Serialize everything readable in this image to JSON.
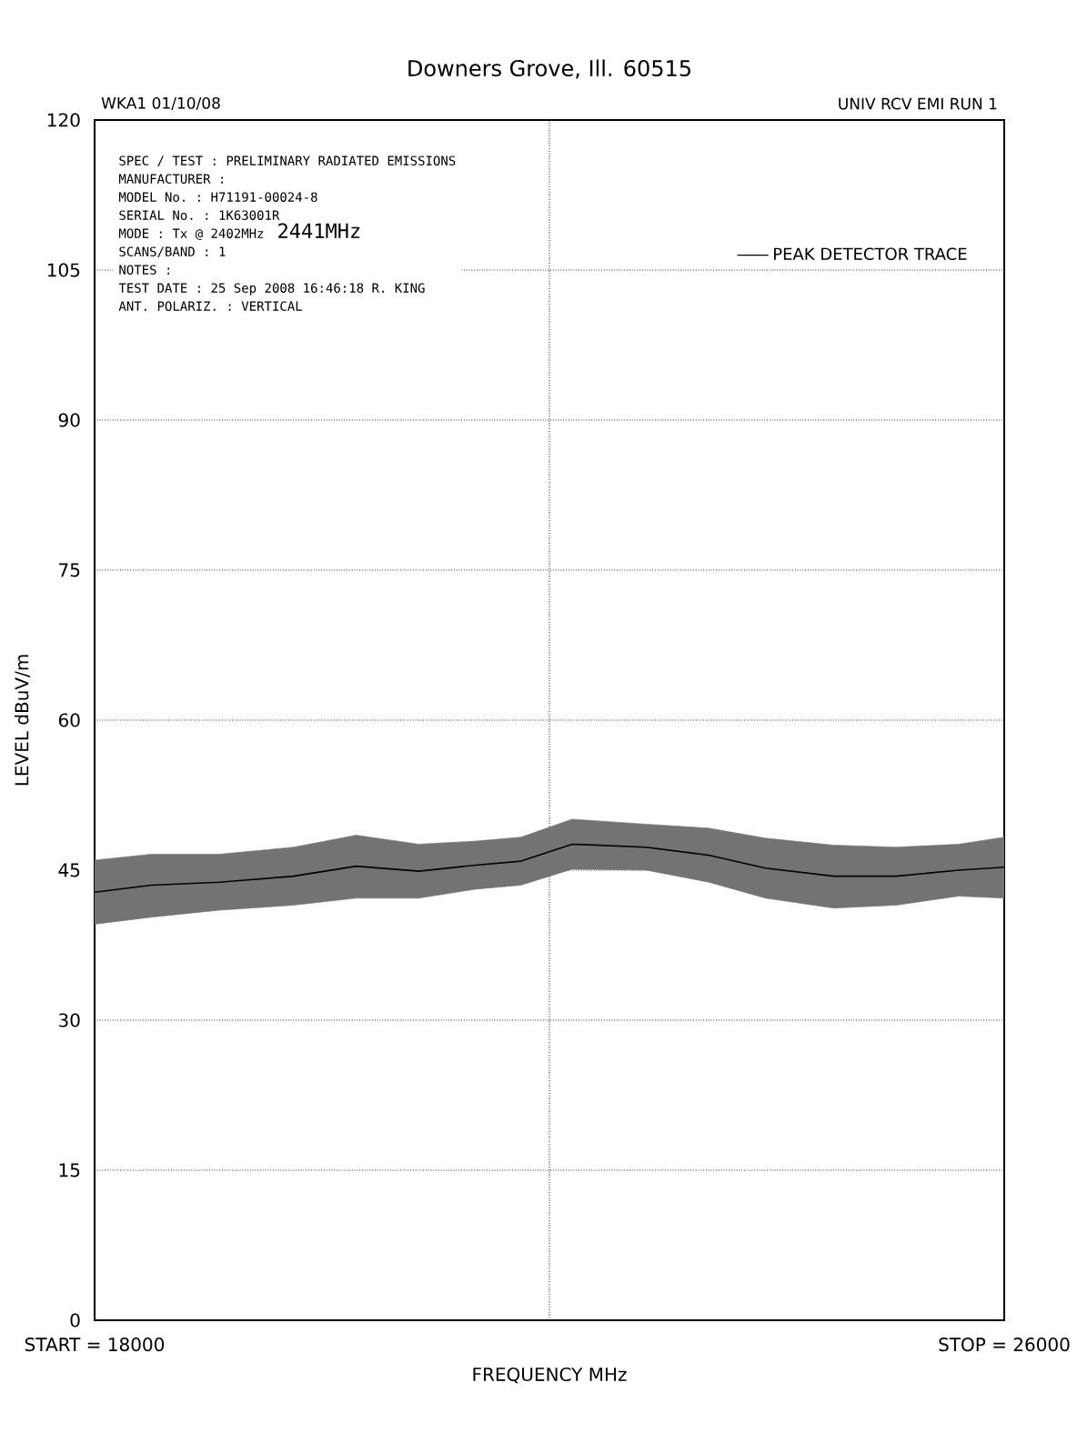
{
  "chart_data": {
    "type": "line",
    "subtitle": "Downers Grove, Ill. 60515",
    "xlabel": "FREQUENCY  MHz",
    "ylabel": "LEVEL dBuV/m",
    "x": [
      18000,
      18500,
      19100,
      19750,
      20300,
      20850,
      21350,
      21750,
      22200,
      22850,
      23400,
      23900,
      24500,
      25050,
      25600,
      26000
    ],
    "series": [
      {
        "name": "PEAK DETECTOR TRACE",
        "color": "#000000",
        "values": [
          42.8,
          43.5,
          43.8,
          44.4,
          45.4,
          44.9,
          45.5,
          45.9,
          47.6,
          47.3,
          46.5,
          45.2,
          44.4,
          44.4,
          45.0,
          45.3
        ],
        "lower": [
          39.6,
          40.3,
          41.0,
          41.5,
          42.2,
          42.2,
          43.1,
          43.5,
          45.1,
          45.0,
          43.8,
          42.2,
          41.2,
          41.5,
          42.4,
          42.2
        ],
        "upper": [
          46.0,
          46.6,
          46.6,
          47.3,
          48.5,
          47.6,
          47.9,
          48.3,
          50.1,
          49.6,
          49.2,
          48.2,
          47.5,
          47.3,
          47.6,
          48.3
        ]
      }
    ],
    "xlim": [
      18000,
      26000
    ],
    "ylim": [
      0,
      120
    ],
    "xticks": [
      {
        "value": 18000,
        "label": "START = 18000"
      },
      {
        "value": 22000,
        "label": null
      },
      {
        "value": 26000,
        "label": "STOP = 26000"
      }
    ],
    "yticks": [
      0,
      15,
      30,
      45,
      60,
      75,
      90,
      105,
      120
    ],
    "grid": true,
    "legend": "top right",
    "annotations": [
      "WKA1  01/10/08",
      "UNIV RCV EMI   RUN 1",
      "SPEC / TEST      : PRELIMINARY RADIATED EMISSIONS",
      "MANUFACTURER     :",
      "MODEL No.        : H71191-00024-8",
      "SERIAL No.       : 1K63001R",
      "MODE             : Tx @ 2402MHz",
      "SCANS/BAND       : 1",
      "NOTES            :",
      "TEST DATE        : 25 Sep 2008 16:46:18  R. KING",
      "ANT. POLARIZ.    : VERTICAL",
      "2441MHz"
    ]
  }
}
